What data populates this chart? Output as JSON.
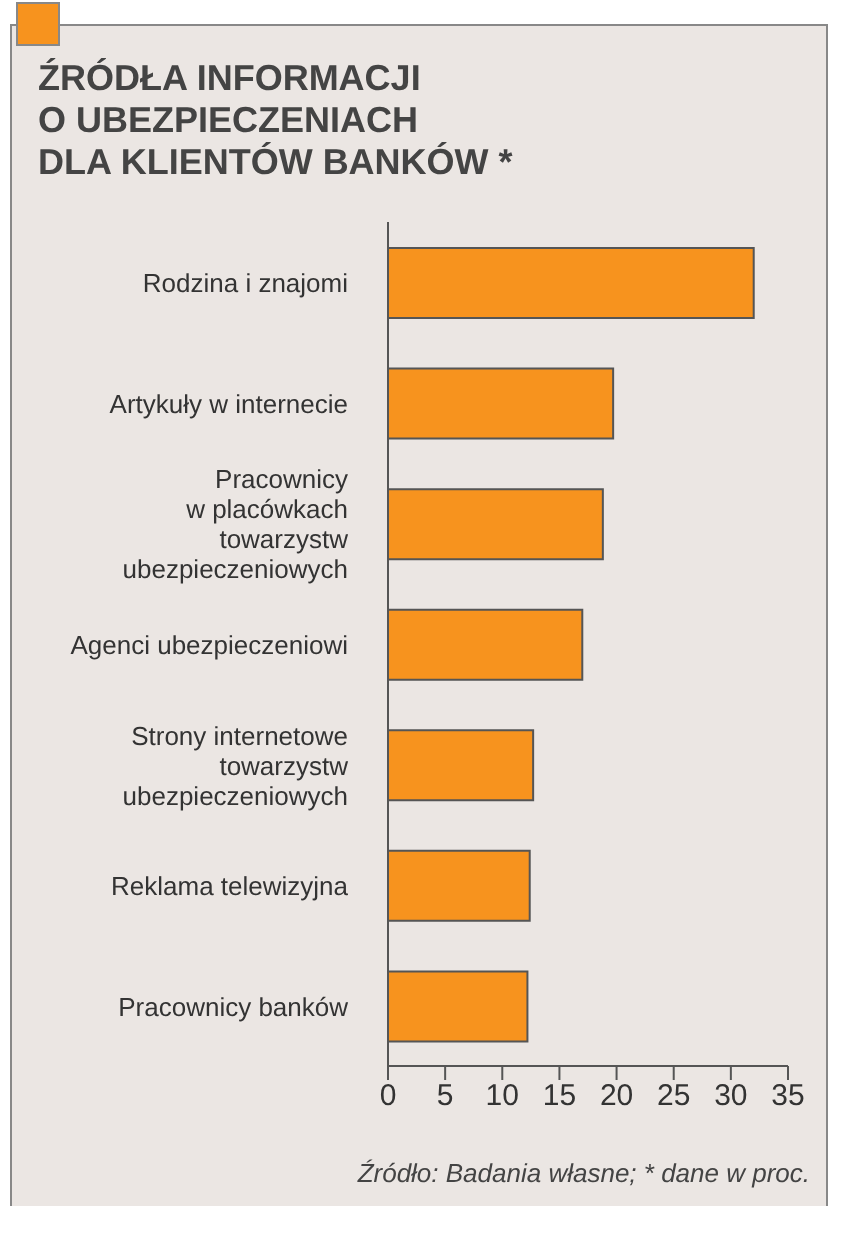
{
  "chart_data": {
    "type": "bar",
    "orientation": "horizontal",
    "title": "ŹRÓDŁA INFORMACJI\nO UBEZPIECZENIACH\nDLA KLIENTÓW BANKÓW *",
    "categories": [
      "Rodzina i znajomi",
      "Artykuły w internecie",
      "Pracownicy\nw placówkach\ntowarzystw\nubezpieczeniowych",
      "Agenci ubezpieczeniowi",
      "Strony internetowe\ntowarzystw\nubezpieczeniowych",
      "Reklama telewizyjna",
      "Pracownicy banków"
    ],
    "values": [
      32,
      19.7,
      18.8,
      17,
      12.7,
      12.4,
      12.2
    ],
    "color": "#f7931e",
    "xlim": [
      0,
      35
    ],
    "xticks": [
      0,
      5,
      10,
      15,
      20,
      25,
      30,
      35
    ],
    "annotations": [
      "Źródło: Badania własne; * dane w proc."
    ]
  }
}
